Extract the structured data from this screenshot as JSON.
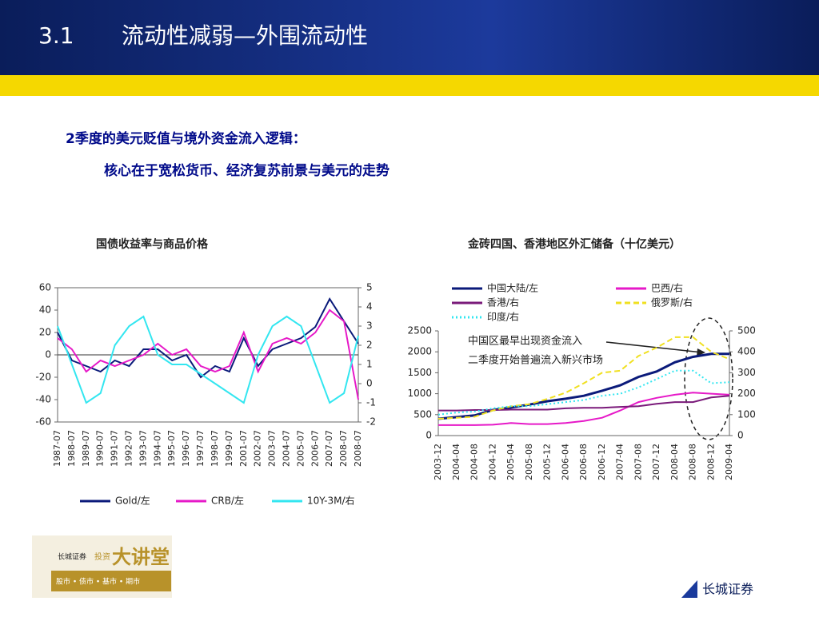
{
  "header": {
    "number": "3.1",
    "title": "流动性减弱—外围流动性"
  },
  "text": {
    "point": "2季度的美元贬值与境外资金流入逻辑：",
    "sub": "核心在于宽松货币、经济复苏前景与美元的走势"
  },
  "footer": {
    "logo_small": "长城证券",
    "logo_tag": "投资",
    "logo_big": "大讲堂",
    "logo_line": "股市 • 债市 • 基市 • 期市",
    "brand": "长城证券"
  },
  "chart_data": [
    {
      "type": "line",
      "title": "国债收益率与商品价格",
      "categories": [
        "1987-07",
        "1988-07",
        "1989-07",
        "1990-07",
        "1991-07",
        "1992-07",
        "1993-07",
        "1994-07",
        "1995-07",
        "1996-07",
        "1997-07",
        "1998-07",
        "1999-07",
        "2001-07",
        "2002-07",
        "2003-07",
        "2004-07",
        "2005-07",
        "2006-07",
        "2007-07",
        "2008-07",
        "2008-07"
      ],
      "series": [
        {
          "name": "Gold/左",
          "color": "#0a1a7a",
          "values": [
            20,
            -5,
            -10,
            -15,
            -5,
            -10,
            5,
            5,
            -5,
            0,
            -20,
            -10,
            -15,
            15,
            -10,
            5,
            10,
            15,
            25,
            50,
            30,
            10
          ]
        },
        {
          "name": "CRB/左",
          "color": "#e619c8",
          "values": [
            15,
            5,
            -15,
            -5,
            -10,
            -5,
            0,
            10,
            0,
            5,
            -10,
            -15,
            -10,
            20,
            -15,
            10,
            15,
            10,
            20,
            40,
            30,
            -40
          ]
        },
        {
          "name": "10Y-3M/右",
          "color": "#33e6f0",
          "axis": "y2",
          "values": [
            3,
            1,
            -1,
            -0.5,
            2,
            3,
            3.5,
            1.5,
            1,
            1,
            0.5,
            0,
            -0.5,
            -1,
            1.5,
            3,
            3.5,
            3,
            1,
            -1,
            -0.5,
            2.5
          ]
        }
      ],
      "ylim": [
        -60,
        60
      ],
      "yticks": [
        -60,
        -40,
        -20,
        0,
        20,
        40,
        60
      ],
      "y2lim": [
        -2,
        5
      ],
      "y2ticks": [
        -2,
        -1,
        0,
        1,
        2,
        3,
        4,
        5
      ],
      "zero_line": true,
      "legend": "bottom"
    },
    {
      "type": "line",
      "title": "金砖四国、香港地区外汇储备（十亿美元）",
      "categories": [
        "2003-12",
        "2004-04",
        "2004-08",
        "2004-12",
        "2005-04",
        "2005-08",
        "2005-12",
        "2006-04",
        "2006-08",
        "2006-12",
        "2007-04",
        "2007-08",
        "2007-12",
        "2008-04",
        "2008-08",
        "2008-12",
        "2009-04"
      ],
      "series": [
        {
          "name": "中国大陆/左",
          "color": "#0a1a7a",
          "values": [
            400,
            440,
            480,
            610,
            670,
            740,
            820,
            880,
            950,
            1070,
            1200,
            1400,
            1530,
            1750,
            1880,
            1950,
            1950
          ]
        },
        {
          "name": "巴西/右",
          "color": "#e619c8",
          "axis": "y2",
          "values": [
            50,
            50,
            50,
            52,
            60,
            55,
            55,
            60,
            70,
            85,
            120,
            160,
            180,
            195,
            205,
            200,
            195
          ]
        },
        {
          "name": "香港/右",
          "color": "#7a1a7a",
          "axis": "y2",
          "values": [
            120,
            120,
            122,
            122,
            124,
            124,
            124,
            130,
            133,
            133,
            137,
            140,
            152,
            160,
            160,
            182,
            190
          ]
        },
        {
          "name": "俄罗斯/右",
          "color": "#f0e020",
          "axis": "y2",
          "dash": "dashed",
          "values": [
            80,
            85,
            90,
            120,
            140,
            150,
            175,
            205,
            250,
            300,
            310,
            380,
            420,
            470,
            470,
            400,
            365
          ]
        },
        {
          "name": "印度/右",
          "color": "#33e6f0",
          "axis": "y2",
          "dash": "dotted",
          "values": [
            100,
            110,
            115,
            130,
            140,
            140,
            150,
            160,
            170,
            190,
            200,
            230,
            270,
            310,
            310,
            250,
            255
          ]
        }
      ],
      "ylim": [
        0,
        2500
      ],
      "yticks": [
        0,
        500,
        1000,
        1500,
        2000,
        2500
      ],
      "y2lim": [
        0,
        500
      ],
      "y2ticks": [
        0,
        100,
        200,
        300,
        400,
        500
      ],
      "annotations": [
        "中国区最早出现资金流入",
        "二季度开始普遍流入新兴市场"
      ],
      "legend": "top"
    }
  ]
}
